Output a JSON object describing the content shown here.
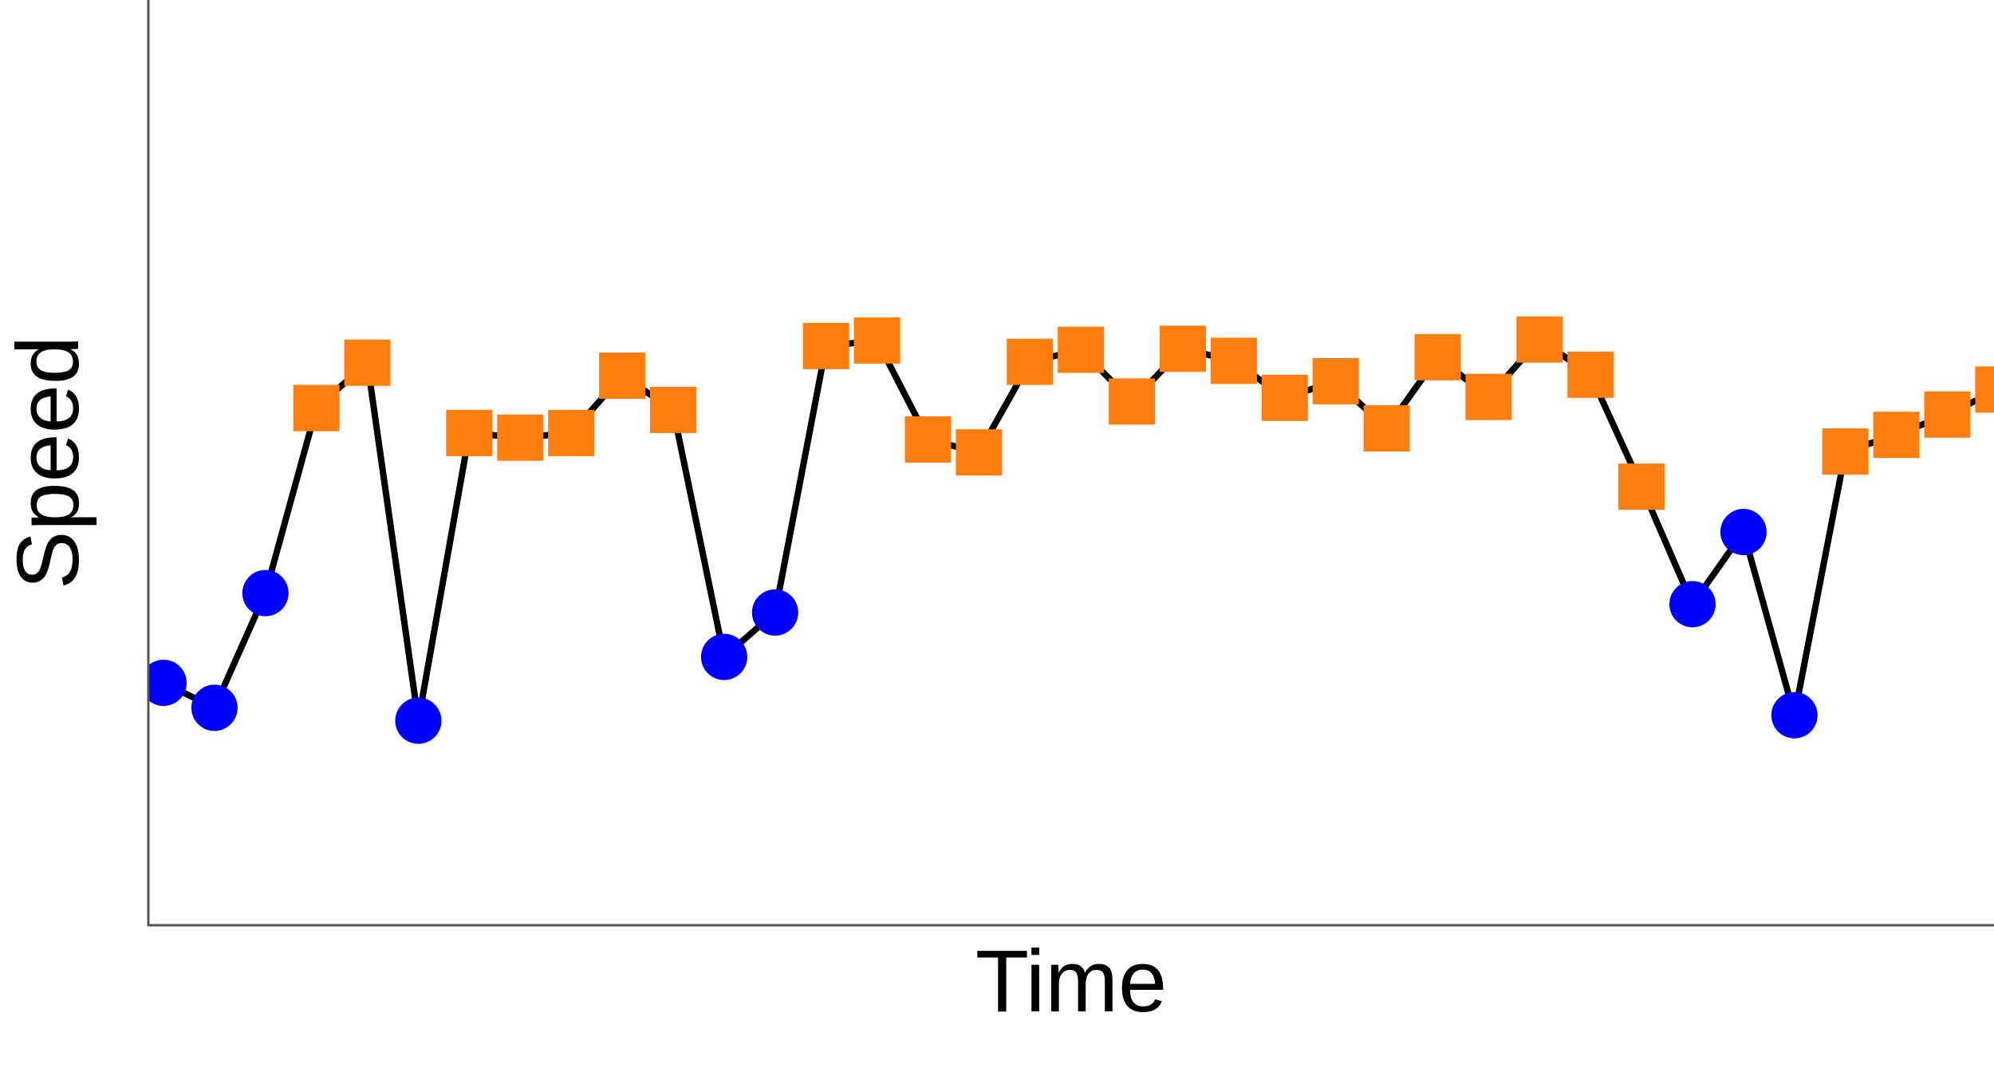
{
  "chart_data": {
    "type": "line",
    "title": "",
    "xlabel": "Time",
    "ylabel": "Speed",
    "grid": false,
    "legend": "none",
    "xlim": [
      0,
      36
    ],
    "ylim": [
      0,
      1
    ],
    "colors": {
      "line": "#000000",
      "low_marker": "#0000ff",
      "high_marker": "#ff7f0e",
      "axis": "#555555"
    },
    "series": [
      {
        "values": [
          {
            "x": 0,
            "y": 0.262,
            "marker": "circle"
          },
          {
            "x": 1,
            "y": 0.235,
            "marker": "circle"
          },
          {
            "x": 2,
            "y": 0.359,
            "marker": "circle"
          },
          {
            "x": 3,
            "y": 0.559,
            "marker": "square"
          },
          {
            "x": 4,
            "y": 0.608,
            "marker": "square"
          },
          {
            "x": 5,
            "y": 0.221,
            "marker": "circle"
          },
          {
            "x": 6,
            "y": 0.532,
            "marker": "square"
          },
          {
            "x": 7,
            "y": 0.527,
            "marker": "square"
          },
          {
            "x": 8,
            "y": 0.532,
            "marker": "square"
          },
          {
            "x": 9,
            "y": 0.594,
            "marker": "square"
          },
          {
            "x": 10,
            "y": 0.557,
            "marker": "square"
          },
          {
            "x": 11,
            "y": 0.29,
            "marker": "circle"
          },
          {
            "x": 12,
            "y": 0.338,
            "marker": "circle"
          },
          {
            "x": 13,
            "y": 0.626,
            "marker": "square"
          },
          {
            "x": 14,
            "y": 0.632,
            "marker": "square"
          },
          {
            "x": 15,
            "y": 0.525,
            "marker": "square"
          },
          {
            "x": 16,
            "y": 0.511,
            "marker": "square"
          },
          {
            "x": 17,
            "y": 0.609,
            "marker": "square"
          },
          {
            "x": 18,
            "y": 0.622,
            "marker": "square"
          },
          {
            "x": 19,
            "y": 0.566,
            "marker": "square"
          },
          {
            "x": 20,
            "y": 0.623,
            "marker": "square"
          },
          {
            "x": 21,
            "y": 0.61,
            "marker": "square"
          },
          {
            "x": 22,
            "y": 0.57,
            "marker": "square"
          },
          {
            "x": 23,
            "y": 0.588,
            "marker": "square"
          },
          {
            "x": 24,
            "y": 0.537,
            "marker": "square"
          },
          {
            "x": 25,
            "y": 0.614,
            "marker": "square"
          },
          {
            "x": 26,
            "y": 0.571,
            "marker": "square"
          },
          {
            "x": 27,
            "y": 0.633,
            "marker": "square"
          },
          {
            "x": 28,
            "y": 0.595,
            "marker": "square"
          },
          {
            "x": 29,
            "y": 0.474,
            "marker": "square"
          },
          {
            "x": 30,
            "y": 0.347,
            "marker": "circle"
          },
          {
            "x": 31,
            "y": 0.425,
            "marker": "circle"
          },
          {
            "x": 32,
            "y": 0.227,
            "marker": "circle"
          },
          {
            "x": 33,
            "y": 0.512,
            "marker": "square"
          },
          {
            "x": 34,
            "y": 0.53,
            "marker": "square"
          },
          {
            "x": 35,
            "y": 0.552,
            "marker": "square"
          },
          {
            "x": 36,
            "y": 0.579,
            "marker": "square"
          }
        ]
      }
    ]
  }
}
